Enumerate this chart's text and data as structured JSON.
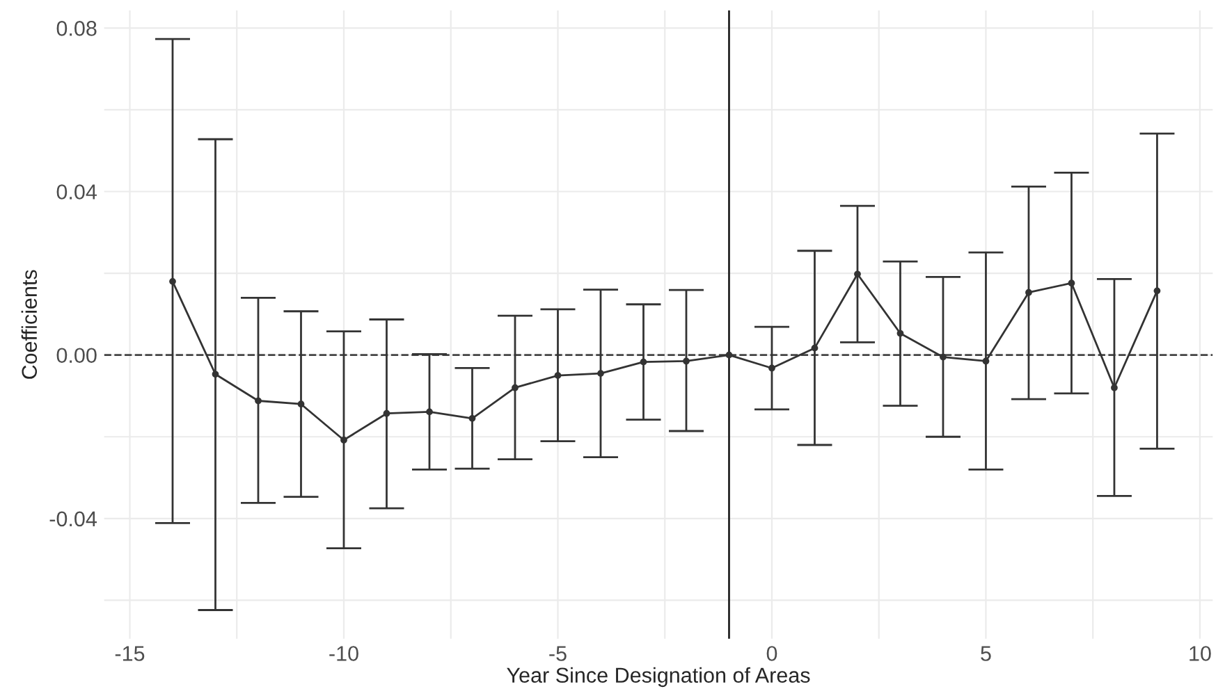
{
  "chart_data": {
    "type": "line",
    "xlabel": "Year Since Designation of Areas",
    "ylabel": "Coefficients",
    "x": [
      -14,
      -13,
      -12,
      -11,
      -10,
      -9,
      -8,
      -7,
      -6,
      -5,
      -4,
      -3,
      -2,
      -1,
      0,
      1,
      2,
      3,
      4,
      5,
      6,
      7,
      8,
      9
    ],
    "series": [
      {
        "color": "#333333",
        "values": [
          0.018,
          -0.0047,
          -0.0112,
          -0.012,
          -0.0208,
          -0.0143,
          -0.0139,
          -0.0155,
          -0.008,
          -0.005,
          -0.0045,
          -0.0017,
          -0.0015,
          0.0,
          -0.0032,
          0.0017,
          0.0198,
          0.0053,
          -0.0005,
          -0.0015,
          0.0153,
          0.0176,
          -0.008,
          0.0157
        ],
        "errors": [
          [
            -0.0411,
            0.0773
          ],
          [
            -0.0624,
            0.0528
          ],
          [
            -0.0362,
            0.014
          ],
          [
            -0.0347,
            0.0107
          ],
          [
            -0.0473,
            0.0058
          ],
          [
            -0.0375,
            0.0087
          ],
          [
            -0.028,
            0.0002
          ],
          [
            -0.0278,
            -0.0032
          ],
          [
            -0.0255,
            0.0096
          ],
          [
            -0.0211,
            0.0112
          ],
          [
            -0.025,
            0.016
          ],
          [
            -0.0158,
            0.0124
          ],
          [
            -0.0186,
            0.0159
          ],
          null,
          [
            -0.0133,
            0.0069
          ],
          [
            -0.022,
            0.0255
          ],
          [
            0.0031,
            0.0365
          ],
          [
            -0.0124,
            0.0229
          ],
          [
            -0.02,
            0.0191
          ],
          [
            -0.028,
            0.0251
          ],
          [
            -0.0108,
            0.0412
          ],
          [
            -0.0094,
            0.0446
          ],
          [
            -0.0345,
            0.0186
          ],
          [
            -0.0229,
            0.0542
          ]
        ]
      }
    ],
    "xlim": [
      -15.6,
      10.3
    ],
    "ylim": [
      -0.0694,
      0.0843
    ],
    "xticks": [
      -15,
      {
        "value": -12.5,
        "label": null
      },
      -10,
      {
        "value": -7.5,
        "label": null
      },
      -5,
      {
        "value": -2.5,
        "label": null
      },
      0,
      {
        "value": 2.5,
        "label": null
      },
      5,
      {
        "value": 7.5,
        "label": null
      },
      10
    ],
    "yticks": [
      {
        "value": -0.06,
        "label": null
      },
      {
        "value": -0.04,
        "label": "-0.04"
      },
      {
        "value": -0.02,
        "label": null
      },
      {
        "value": 0.0,
        "label": "0.00"
      },
      {
        "value": 0.02,
        "label": null
      },
      {
        "value": 0.04,
        "label": "0.04"
      },
      {
        "value": 0.06,
        "label": null
      },
      {
        "value": 0.08,
        "label": "0.08"
      }
    ],
    "ref_lines": [
      {
        "axis": "x",
        "value": -1,
        "color": "#222222",
        "line_style": "solid"
      },
      {
        "axis": "y",
        "value": 0,
        "color": "#444444",
        "line_style": "dashed"
      }
    ],
    "grid": true,
    "marker": "circle",
    "line_style": "solid"
  }
}
